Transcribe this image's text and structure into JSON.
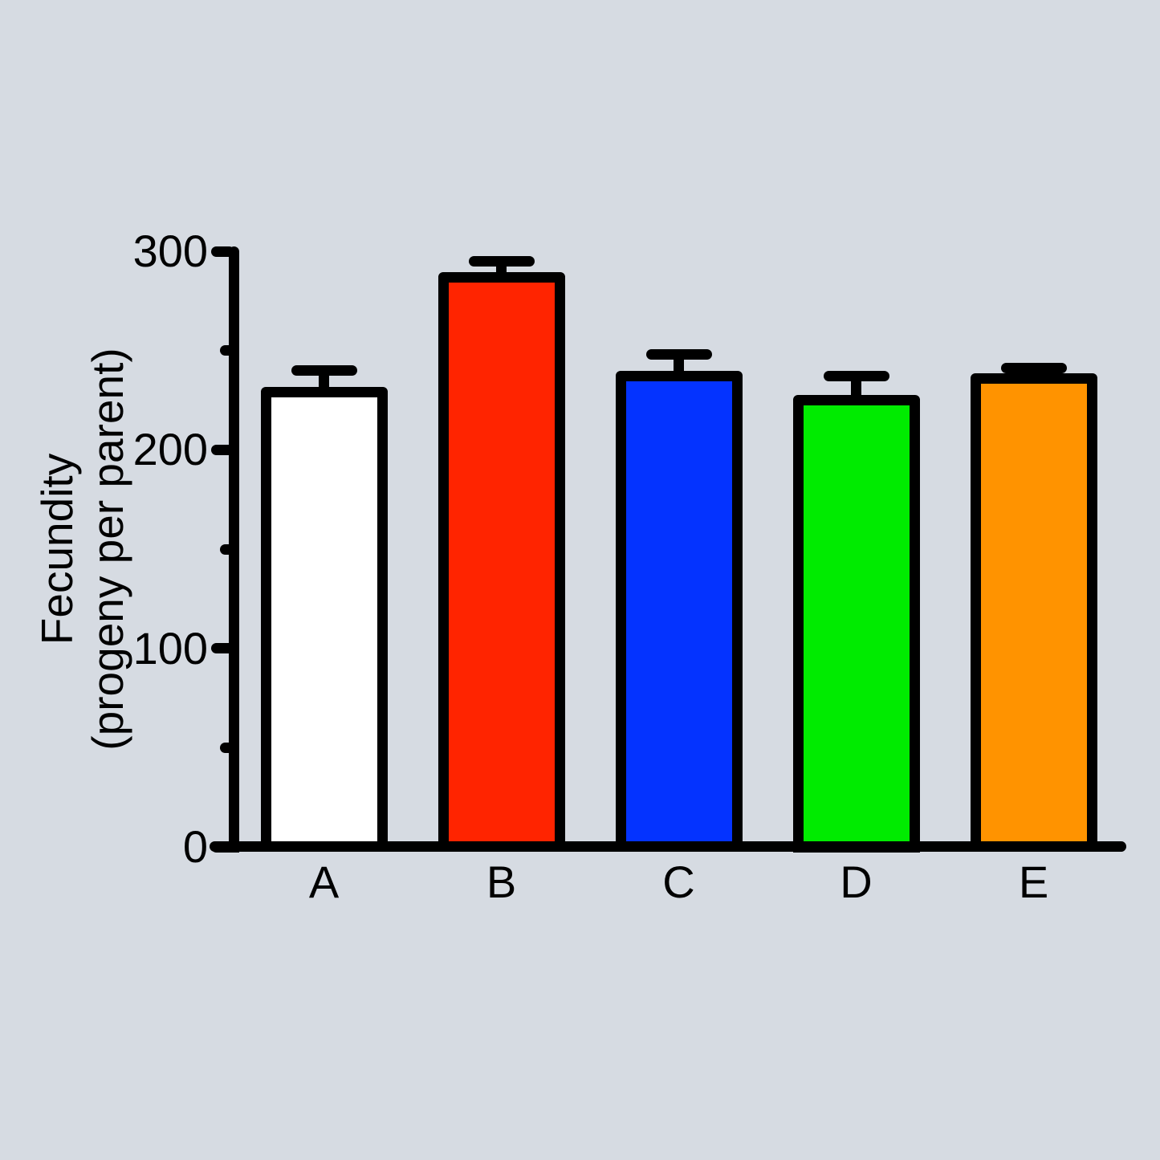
{
  "chart_data": {
    "type": "bar",
    "title": "",
    "xlabel": "",
    "ylabel": "Fecundity (progeny per parent)",
    "ylabel_lines": [
      "Fecundity",
      "(progeny per parent)"
    ],
    "categories": [
      "A",
      "B",
      "C",
      "D",
      "E"
    ],
    "series": [
      {
        "name": "Fecundity (progeny per parent)",
        "values": [
          229,
          287,
          237,
          225,
          236
        ],
        "errors_plus": [
          11,
          8,
          11,
          12,
          5
        ]
      }
    ],
    "error_bars": "upper only, cap style",
    "bar_fill_colors": [
      "#FFFFFF",
      "#FF2400",
      "#0433FF",
      "#00EB00",
      "#FF9300"
    ],
    "bar_border_color": "#000000",
    "axis_color": "#000000",
    "background_color": "#D6DBE2",
    "ylim": [
      0,
      300
    ],
    "yticks": [
      0,
      100,
      200,
      300
    ],
    "ytick_labels": [
      "0",
      "100",
      "200",
      "300"
    ],
    "minor_yticks": [
      50,
      150,
      250
    ],
    "grid": false,
    "legend_position": "none"
  }
}
